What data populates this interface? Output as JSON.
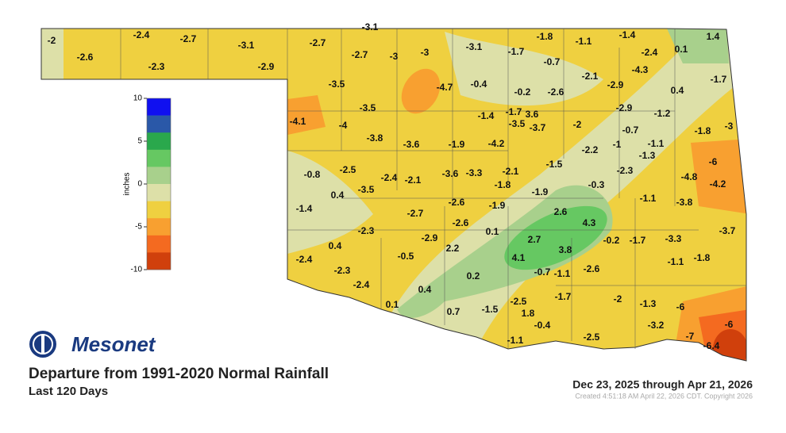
{
  "header": {
    "logo": "Mesonet",
    "title": "Departure from 1991-2020 Normal Rainfall",
    "subtitle": "Last 120 Days",
    "period": "Dec 23, 2025 through Apr 21, 2026",
    "created": "Created 4:51:18 AM April 22, 2026 CDT. Copyright 2026"
  },
  "legend": {
    "title": "inches",
    "range": [
      -10,
      10
    ],
    "ticks": [
      10,
      5,
      0,
      -5,
      -10
    ],
    "colors": [
      "#1010f0",
      "#2a58a8",
      "#2aa84c",
      "#66c862",
      "#a8d08c",
      "#dde0a8",
      "#efd040",
      "#f8a030",
      "#f46a20",
      "#d0400c"
    ]
  },
  "stations": [
    -2.0,
    -2.6,
    -2.4,
    -2.3,
    -2.7,
    -3.1,
    -2.9,
    -2.7,
    -3.1,
    -2.7,
    -3.0,
    -3.0,
    -3.1,
    -1.7,
    -1.8,
    -1.1,
    -1.4,
    1.4,
    0.1,
    -2.4,
    -0.7,
    -4.3,
    -2.1,
    -3.5,
    -4.7,
    -0.4,
    -0.2,
    -2.6,
    -2.9,
    0.4,
    -1.7,
    -3.5,
    -4.1,
    -1.4,
    -1.7,
    3.6,
    -2.9,
    -1.2,
    -4.0,
    -3.5,
    -3.7,
    -2.0,
    -0.7,
    -1.8,
    -3.0,
    -3.8,
    -3.6,
    -1.9,
    -4.2,
    -2.2,
    -1.0,
    -1.1,
    -1.3,
    -6.0,
    -0.8,
    -2.5,
    -2.4,
    -2.1,
    -3.6,
    -3.3,
    -2.1,
    -1.5,
    -2.3,
    -4.8,
    -4.2,
    0.4,
    -3.5,
    -1.8,
    -1.9,
    -0.3,
    -1.4,
    -2.7,
    -2.6,
    -1.9,
    -1.1,
    -3.8,
    2.6,
    4.3,
    -2.6,
    -2.3,
    -3.7,
    -2.9,
    0.1,
    0.4,
    2.7,
    -0.2,
    -1.7,
    -3.3,
    2.2,
    3.8,
    -0.5,
    4.1,
    -1.1,
    -1.8,
    -2.4,
    -2.3,
    -0.7,
    -1.1,
    -2.6,
    0.2,
    -2.4,
    0.4,
    -1.7,
    -2.0,
    -1.3,
    -6.0,
    -2.5,
    0.1,
    0.7,
    -1.5,
    1.8,
    -0.4,
    -3.2,
    -6.0,
    -2.5,
    -7.0,
    -1.1,
    -6.4
  ]
}
